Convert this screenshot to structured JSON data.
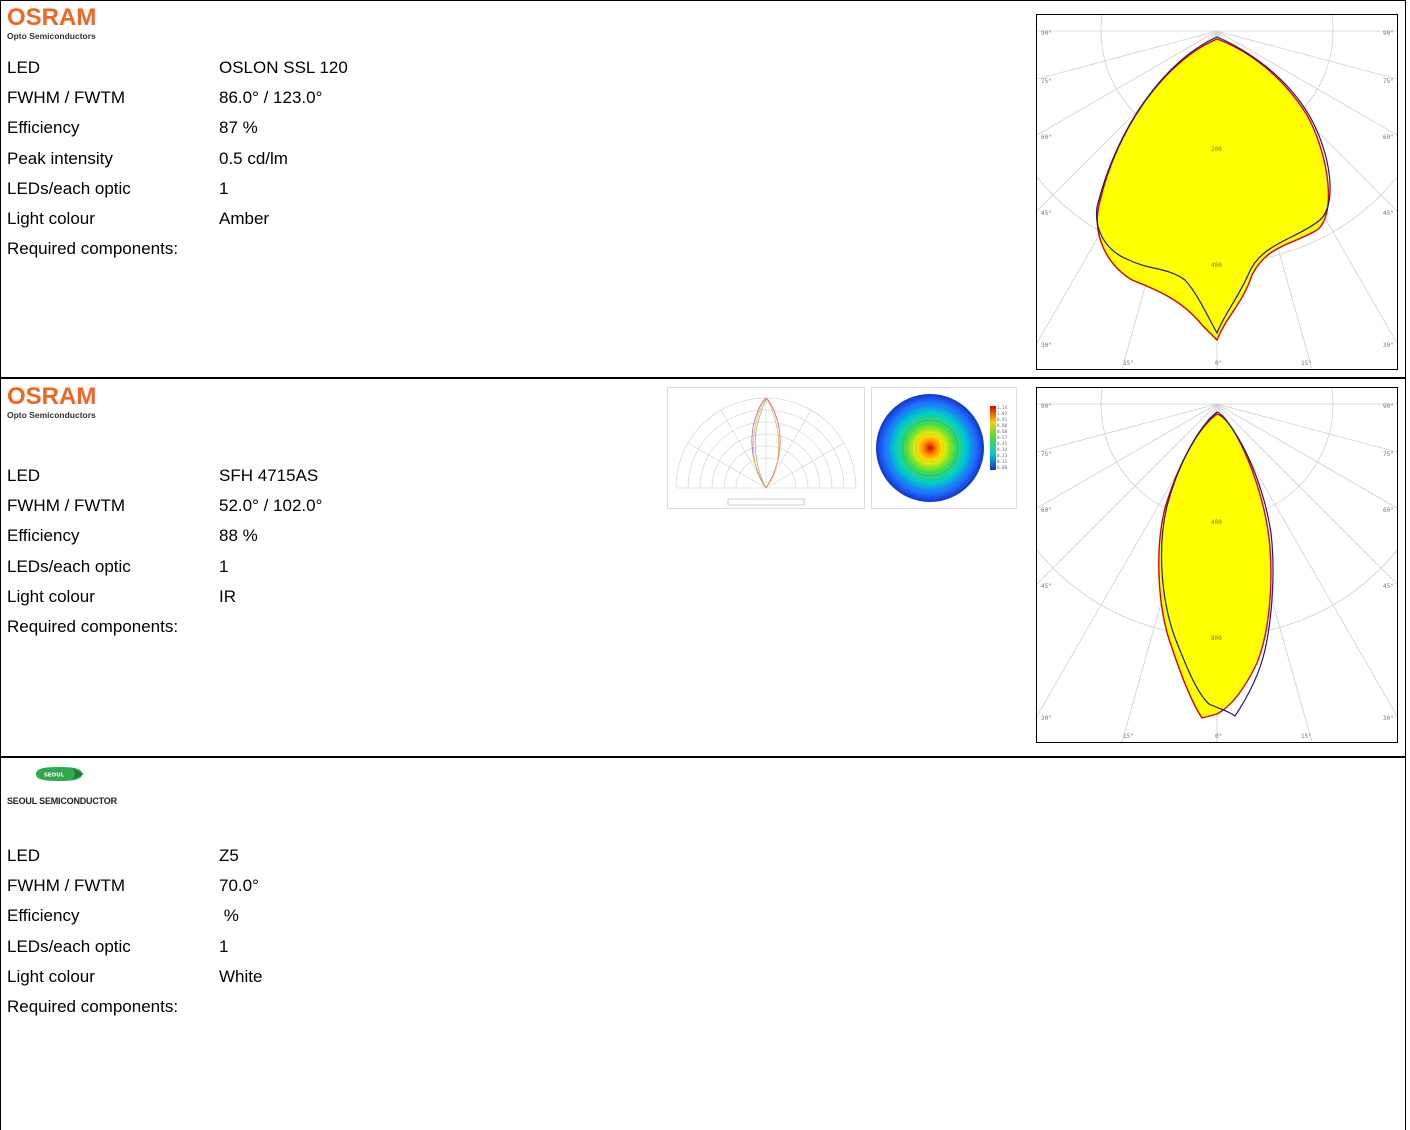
{
  "sections": [
    {
      "brand": "OSRAM",
      "brand_sub": "Opto Semiconductors",
      "rows": [
        {
          "label": "LED",
          "value": "OSLON SSL 120"
        },
        {
          "label": "FWHM / FWTM",
          "value": "86.0° / 123.0°"
        },
        {
          "label": "Efficiency",
          "value": "87 %"
        },
        {
          "label": "Peak intensity",
          "value": "0.5 cd/lm"
        },
        {
          "label": "LEDs/each optic",
          "value": "1"
        },
        {
          "label": "Light colour",
          "value": "Amber"
        },
        {
          "label": "Required components:",
          "value": ""
        }
      ],
      "polar": {
        "angle_labels": [
          "90°",
          "75°",
          "60°",
          "45°",
          "30°",
          "15°",
          "0°",
          "15°",
          "30°",
          "45°",
          "60°",
          "75°",
          "90°"
        ],
        "ring_labels": [
          "200",
          "400"
        ]
      }
    },
    {
      "brand": "OSRAM",
      "brand_sub": "Opto Semiconductors",
      "rows": [
        {
          "label": "LED",
          "value": "SFH 4715AS"
        },
        {
          "label": "FWHM / FWTM",
          "value": "52.0° / 102.0°"
        },
        {
          "label": "Efficiency",
          "value": "88 %"
        },
        {
          "label": "LEDs/each optic",
          "value": "1"
        },
        {
          "label": "Light colour",
          "value": "IR"
        },
        {
          "label": "Required components:",
          "value": ""
        }
      ],
      "polar": {
        "angle_labels": [
          "90°",
          "75°",
          "60°",
          "45°",
          "30°",
          "15°",
          "0°",
          "15°",
          "30°",
          "45°",
          "60°",
          "75°",
          "90°"
        ],
        "ring_labels": [
          "400",
          "800"
        ]
      },
      "thumbnail_legend": [
        "1.14",
        "1.02",
        "0.91",
        "0.80",
        "0.68",
        "0.57",
        "0.45",
        "0.34",
        "0.23",
        "0.11",
        "0.00"
      ]
    },
    {
      "brand": "SEOUL SEMICONDUCTOR",
      "badge": "SEOUL",
      "rows": [
        {
          "label": "LED",
          "value": "Z5"
        },
        {
          "label": "FWHM / FWTM",
          "value": "70.0°"
        },
        {
          "label": "Efficiency",
          "value": " %"
        },
        {
          "label": "LEDs/each optic",
          "value": "1"
        },
        {
          "label": "Light colour",
          "value": "White"
        },
        {
          "label": "Required components:",
          "value": ""
        }
      ]
    }
  ],
  "colors": {
    "osram": "#f26522",
    "curve_fill": "#ffff00",
    "curve_red": "#e00000",
    "curve_blue": "#1a1a8c",
    "seoul_green": "#2fa84f"
  }
}
